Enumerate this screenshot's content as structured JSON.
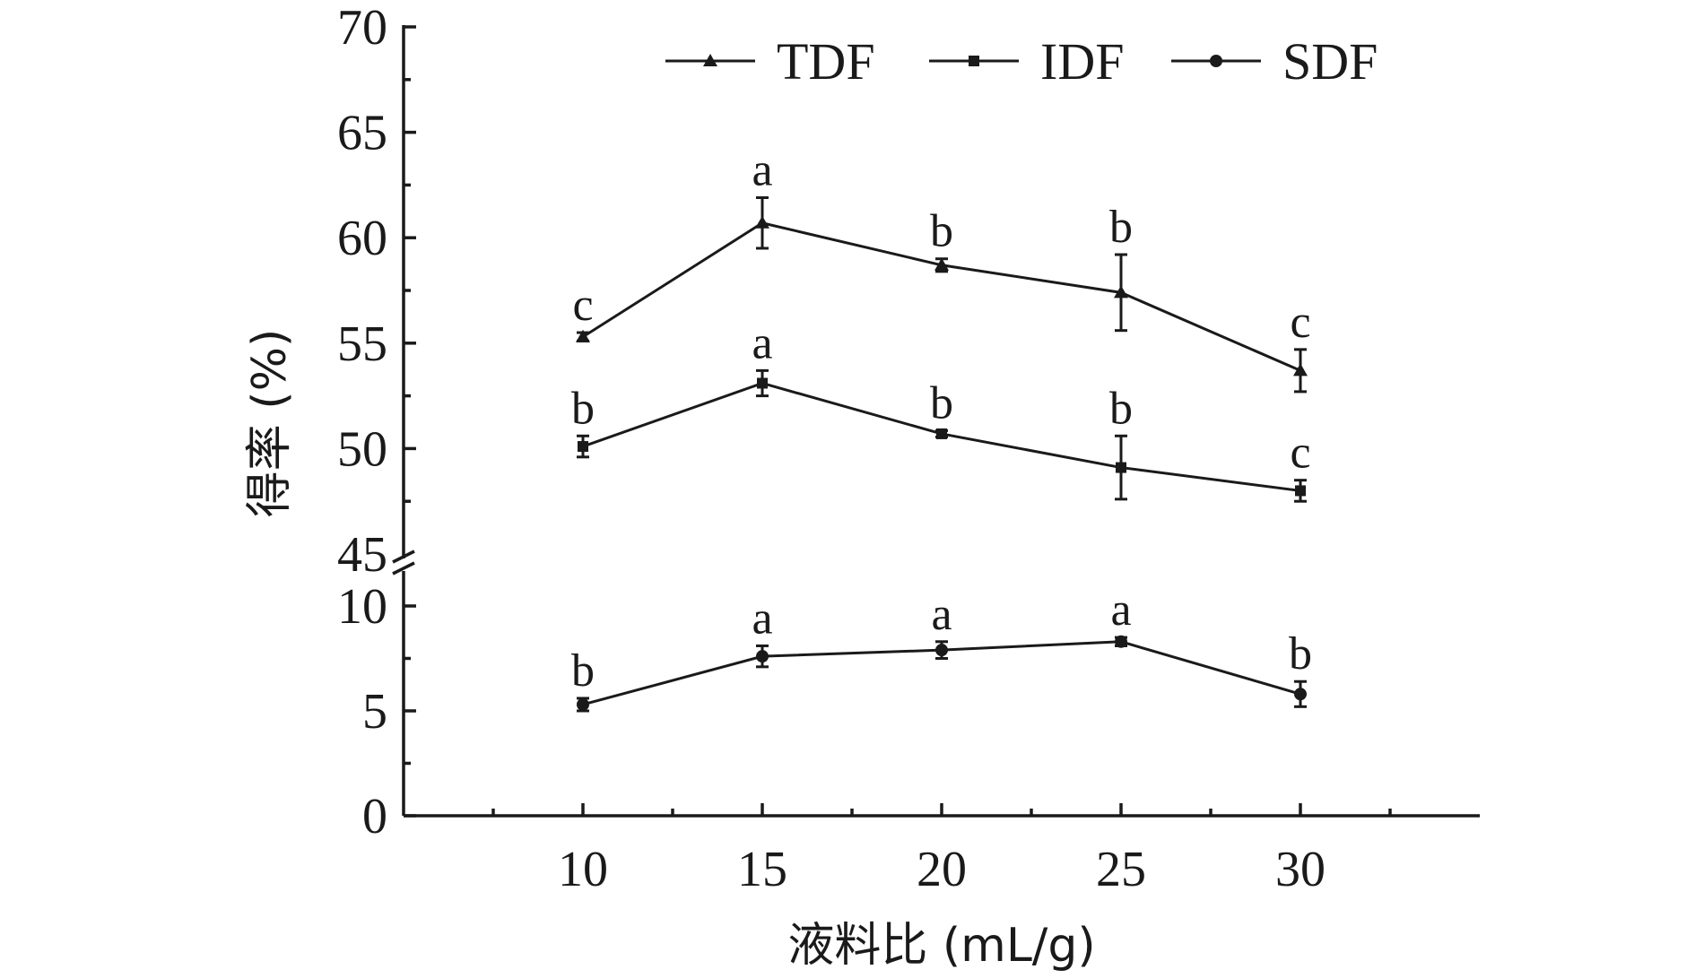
{
  "chart_data": {
    "type": "line",
    "xlabel": "液料比 (mL/g)",
    "ylabel": "得率 (%)",
    "x": [
      10,
      15,
      20,
      25,
      30
    ],
    "x_tick_labels": [
      "10",
      "15",
      "20",
      "25",
      "30"
    ],
    "y_axis_break": true,
    "y_segments": [
      {
        "range": [
          0,
          10
        ],
        "ticks": [
          0,
          5,
          10
        ],
        "tick_labels": [
          "0",
          "5",
          "10"
        ]
      },
      {
        "range": [
          45,
          70
        ],
        "ticks": [
          45,
          50,
          55,
          60,
          65,
          70
        ],
        "tick_labels": [
          "45",
          "50",
          "55",
          "60",
          "65",
          "70"
        ]
      }
    ],
    "legend_position": "top",
    "series": [
      {
        "name": "TDF",
        "marker": "triangle",
        "values": [
          55.3,
          60.7,
          58.7,
          57.4,
          53.7
        ],
        "errors": [
          0.2,
          1.2,
          0.3,
          1.8,
          1.0
        ],
        "significance": [
          "c",
          "a",
          "b",
          "b",
          "c"
        ]
      },
      {
        "name": "IDF",
        "marker": "square",
        "values": [
          50.1,
          53.1,
          50.7,
          49.1,
          48.0
        ],
        "errors": [
          0.5,
          0.6,
          0.15,
          1.5,
          0.5
        ],
        "significance": [
          "b",
          "a",
          "b",
          "b",
          "c"
        ]
      },
      {
        "name": "SDF",
        "marker": "circle",
        "values": [
          5.3,
          7.6,
          7.9,
          8.3,
          5.8
        ],
        "errors": [
          0.3,
          0.5,
          0.4,
          0.2,
          0.6
        ],
        "significance": [
          "b",
          "a",
          "a",
          "a",
          "b"
        ]
      }
    ]
  }
}
